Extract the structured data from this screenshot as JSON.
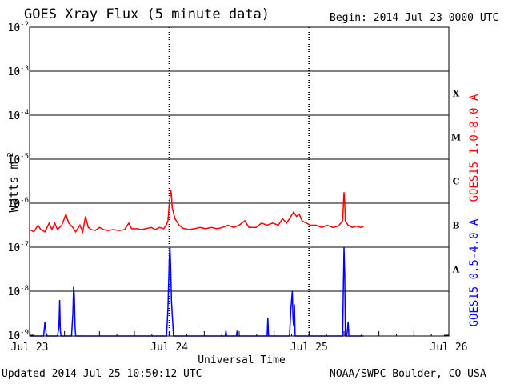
{
  "header": {
    "title": "GOES Xray Flux (5 minute data)",
    "begin": "Begin:  2014 Jul 23 0000 UTC"
  },
  "footer": {
    "updated": "Updated 2014 Jul 25 10:50:12 UTC",
    "credit": "NOAA/SWPC Boulder, CO USA"
  },
  "chart_data": {
    "type": "line",
    "title": "GOES Xray Flux (5 minute data)",
    "xlabel": "Universal Time",
    "ylabel": "Watts m",
    "ylabel_superscript": "-2",
    "yscale": "log",
    "ylim_exp": [
      -9,
      -2
    ],
    "xlim_days": [
      0,
      3
    ],
    "x_ticks": [
      {
        "day": 0,
        "label": "Jul 23"
      },
      {
        "day": 1,
        "label": "Jul 24"
      },
      {
        "day": 2,
        "label": "Jul 25"
      },
      {
        "day": 3,
        "label": "Jul 26"
      }
    ],
    "y_ticks": [
      {
        "exp": -9,
        "label": "10",
        "sup": "-9"
      },
      {
        "exp": -8,
        "label": "10",
        "sup": "-8"
      },
      {
        "exp": -7,
        "label": "10",
        "sup": "-7"
      },
      {
        "exp": -6,
        "label": "10",
        "sup": "-6"
      },
      {
        "exp": -5,
        "label": "10",
        "sup": "-5"
      },
      {
        "exp": -4,
        "label": "10",
        "sup": "-4"
      },
      {
        "exp": -3,
        "label": "10",
        "sup": "-3"
      },
      {
        "exp": -2,
        "label": "10",
        "sup": "-2"
      }
    ],
    "flare_classes": [
      {
        "label": "A",
        "exp": -7.5
      },
      {
        "label": "B",
        "exp": -6.5
      },
      {
        "label": "C",
        "exp": -5.5
      },
      {
        "label": "M",
        "exp": -4.5
      },
      {
        "label": "X",
        "exp": -3.5
      }
    ],
    "grid": true,
    "series": [
      {
        "name": "GOES15 1.0-8.0 A",
        "color": "#ff0000",
        "points": [
          [
            0.0,
            -6.6
          ],
          [
            0.03,
            -6.65
          ],
          [
            0.06,
            -6.5
          ],
          [
            0.08,
            -6.6
          ],
          [
            0.11,
            -6.65
          ],
          [
            0.14,
            -6.45
          ],
          [
            0.16,
            -6.6
          ],
          [
            0.18,
            -6.45
          ],
          [
            0.2,
            -6.6
          ],
          [
            0.23,
            -6.5
          ],
          [
            0.26,
            -6.25
          ],
          [
            0.28,
            -6.45
          ],
          [
            0.31,
            -6.55
          ],
          [
            0.33,
            -6.65
          ],
          [
            0.36,
            -6.5
          ],
          [
            0.38,
            -6.65
          ],
          [
            0.4,
            -6.3
          ],
          [
            0.42,
            -6.55
          ],
          [
            0.44,
            -6.6
          ],
          [
            0.47,
            -6.62
          ],
          [
            0.5,
            -6.55
          ],
          [
            0.53,
            -6.6
          ],
          [
            0.56,
            -6.62
          ],
          [
            0.6,
            -6.6
          ],
          [
            0.64,
            -6.62
          ],
          [
            0.68,
            -6.6
          ],
          [
            0.71,
            -6.45
          ],
          [
            0.73,
            -6.58
          ],
          [
            0.77,
            -6.58
          ],
          [
            0.8,
            -6.6
          ],
          [
            0.83,
            -6.58
          ],
          [
            0.87,
            -6.55
          ],
          [
            0.9,
            -6.6
          ],
          [
            0.93,
            -6.55
          ],
          [
            0.96,
            -6.58
          ],
          [
            0.98,
            -6.48
          ],
          [
            0.99,
            -6.4
          ],
          [
            1.0,
            -6.0
          ],
          [
            1.01,
            -5.7
          ],
          [
            1.015,
            -5.8
          ],
          [
            1.02,
            -6.1
          ],
          [
            1.04,
            -6.35
          ],
          [
            1.07,
            -6.5
          ],
          [
            1.1,
            -6.57
          ],
          [
            1.14,
            -6.6
          ],
          [
            1.18,
            -6.58
          ],
          [
            1.22,
            -6.55
          ],
          [
            1.26,
            -6.58
          ],
          [
            1.3,
            -6.55
          ],
          [
            1.34,
            -6.58
          ],
          [
            1.38,
            -6.55
          ],
          [
            1.42,
            -6.5
          ],
          [
            1.46,
            -6.55
          ],
          [
            1.5,
            -6.5
          ],
          [
            1.54,
            -6.4
          ],
          [
            1.57,
            -6.55
          ],
          [
            1.62,
            -6.55
          ],
          [
            1.66,
            -6.45
          ],
          [
            1.7,
            -6.5
          ],
          [
            1.74,
            -6.45
          ],
          [
            1.78,
            -6.5
          ],
          [
            1.81,
            -6.35
          ],
          [
            1.84,
            -6.45
          ],
          [
            1.87,
            -6.3
          ],
          [
            1.89,
            -6.2
          ],
          [
            1.91,
            -6.3
          ],
          [
            1.93,
            -6.25
          ],
          [
            1.95,
            -6.4
          ],
          [
            1.98,
            -6.45
          ],
          [
            2.01,
            -6.5
          ],
          [
            2.05,
            -6.5
          ],
          [
            2.09,
            -6.55
          ],
          [
            2.13,
            -6.5
          ],
          [
            2.17,
            -6.55
          ],
          [
            2.21,
            -6.52
          ],
          [
            2.24,
            -6.4
          ],
          [
            2.25,
            -5.75
          ],
          [
            2.255,
            -6.0
          ],
          [
            2.26,
            -6.4
          ],
          [
            2.28,
            -6.5
          ],
          [
            2.31,
            -6.55
          ],
          [
            2.34,
            -6.52
          ],
          [
            2.37,
            -6.55
          ],
          [
            2.39,
            -6.53
          ]
        ]
      },
      {
        "name": "GOES15 0.5-4.0 A",
        "color": "#0000ff",
        "points": [
          [
            0.0,
            -9.2
          ],
          [
            0.1,
            -9.2
          ],
          [
            0.11,
            -8.7
          ],
          [
            0.12,
            -9.2
          ],
          [
            0.2,
            -9.2
          ],
          [
            0.21,
            -8.8
          ],
          [
            0.215,
            -8.2
          ],
          [
            0.22,
            -8.9
          ],
          [
            0.225,
            -9.2
          ],
          [
            0.3,
            -9.2
          ],
          [
            0.31,
            -8.5
          ],
          [
            0.315,
            -7.9
          ],
          [
            0.32,
            -8.1
          ],
          [
            0.325,
            -8.8
          ],
          [
            0.33,
            -9.2
          ],
          [
            0.98,
            -9.2
          ],
          [
            0.99,
            -8.4
          ],
          [
            1.0,
            -7.2
          ],
          [
            1.005,
            -7.0
          ],
          [
            1.01,
            -7.5
          ],
          [
            1.015,
            -8.2
          ],
          [
            1.02,
            -8.5
          ],
          [
            1.03,
            -9.2
          ],
          [
            1.4,
            -9.2
          ],
          [
            1.405,
            -8.9
          ],
          [
            1.41,
            -9.2
          ],
          [
            1.48,
            -9.2
          ],
          [
            1.485,
            -8.9
          ],
          [
            1.49,
            -9.2
          ],
          [
            1.7,
            -9.2
          ],
          [
            1.705,
            -8.6
          ],
          [
            1.71,
            -9.2
          ],
          [
            1.86,
            -9.2
          ],
          [
            1.87,
            -8.4
          ],
          [
            1.875,
            -8.2
          ],
          [
            1.88,
            -8.0
          ],
          [
            1.885,
            -8.6
          ],
          [
            1.89,
            -8.8
          ],
          [
            1.895,
            -8.3
          ],
          [
            1.9,
            -9.2
          ],
          [
            2.24,
            -9.2
          ],
          [
            2.245,
            -8.0
          ],
          [
            2.25,
            -7.0
          ],
          [
            2.255,
            -7.6
          ],
          [
            2.26,
            -9.0
          ],
          [
            2.27,
            -9.2
          ],
          [
            2.28,
            -8.7
          ],
          [
            2.285,
            -9.2
          ],
          [
            2.39,
            -9.2
          ]
        ]
      }
    ]
  }
}
